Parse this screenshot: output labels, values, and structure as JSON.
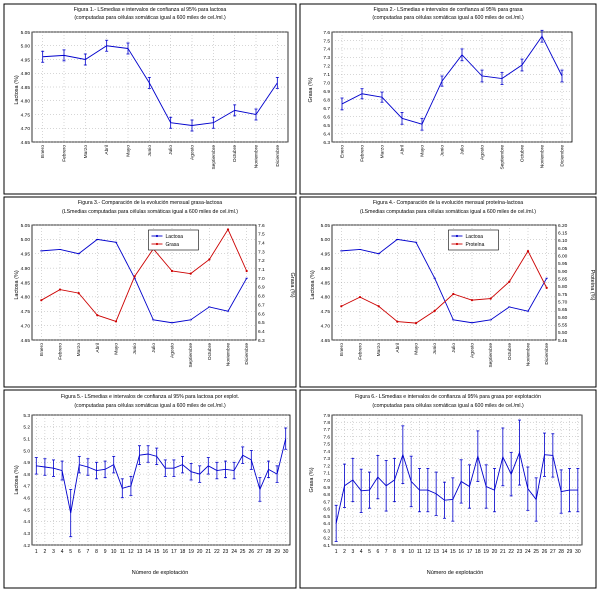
{
  "chart_data": [
    {
      "type": "line",
      "title": "Figura 1.- LSmedias e intervalos de confianza al 95% para lactosa",
      "subtitle": "(computadas para células somáticas igual a 600 miles de cel./ml.)",
      "ylabel": "Lactosa (%)",
      "xlabel": "",
      "ylim": [
        4.65,
        5.05
      ],
      "yticks": [
        "4.65",
        "4.70",
        "4.75",
        "4.80",
        "4.85",
        "4.90",
        "4.95",
        "5.00",
        "5.05"
      ],
      "categories": [
        "Enero",
        "Febrero",
        "Marzo",
        "Abril",
        "Mayo",
        "Junio",
        "Julio",
        "Agosto",
        "Septiembre",
        "Octubre",
        "Noviembre",
        "Diciembre"
      ],
      "series": [
        {
          "name": "",
          "values": [
            4.96,
            4.965,
            4.95,
            5.0,
            4.99,
            4.865,
            4.72,
            4.71,
            4.72,
            4.765,
            4.75,
            4.865
          ],
          "err": [
            0.02,
            0.02,
            0.02,
            0.02,
            0.02,
            0.02,
            0.02,
            0.02,
            0.02,
            0.02,
            0.02,
            0.02
          ],
          "color": "#0000cc"
        }
      ],
      "grid": true
    },
    {
      "type": "line",
      "title": "Figura 2.- LSmedias e intervalos de confianza al 95% para grasa",
      "subtitle": "(computadas para células somáticas igual a 600 miles de cel./ml.)",
      "ylabel": "Grasa (%)",
      "xlabel": "",
      "ylim": [
        6.3,
        7.6
      ],
      "yticks": [
        "6.3",
        "6.4",
        "6.5",
        "6.6",
        "6.7",
        "6.8",
        "6.9",
        "7.0",
        "7.1",
        "7.2",
        "7.3",
        "7.4",
        "7.5",
        "7.6"
      ],
      "categories": [
        "Enero",
        "Febrero",
        "Marzo",
        "Abril",
        "Mayo",
        "Junio",
        "Julio",
        "Agosto",
        "Septiembre",
        "Octubre",
        "Noviembre",
        "Diciembre"
      ],
      "series": [
        {
          "name": "",
          "values": [
            6.75,
            6.87,
            6.83,
            6.58,
            6.51,
            7.02,
            7.33,
            7.08,
            7.05,
            7.21,
            7.55,
            7.08
          ],
          "err": [
            0.07,
            0.06,
            0.06,
            0.07,
            0.07,
            0.06,
            0.07,
            0.07,
            0.07,
            0.07,
            0.07,
            0.07
          ],
          "color": "#0000cc"
        }
      ],
      "grid": true
    },
    {
      "type": "line",
      "title": "Figura 3.- Comparación de la evolución mensual grasa-lactosa",
      "subtitle": "(LSmedias computadas para células somáticas igual a 600 miles de cel./ml.)",
      "ylabel": "Lactosa (%)",
      "ylabel_right": "Grasa (%)",
      "xlabel": "",
      "ylim": [
        4.65,
        5.05
      ],
      "ylim_right": [
        6.3,
        7.6
      ],
      "yticks": [
        "4.65",
        "4.70",
        "4.75",
        "4.80",
        "4.85",
        "4.90",
        "4.95",
        "5.00",
        "5.05"
      ],
      "yticks_right": [
        "6.3",
        "6.4",
        "6.5",
        "6.6",
        "6.7",
        "6.8",
        "6.9",
        "7.0",
        "7.1",
        "7.2",
        "7.3",
        "7.4",
        "7.5",
        "7.6"
      ],
      "categories": [
        "Enero",
        "Febrero",
        "Marzo",
        "Abril",
        "Mayo",
        "Junio",
        "Julio",
        "Agosto",
        "Septiembre",
        "Octubre",
        "Noviembre",
        "Diciembre"
      ],
      "series": [
        {
          "name": "Lactosa",
          "axis": "left",
          "values": [
            4.96,
            4.965,
            4.95,
            5.0,
            4.99,
            4.865,
            4.72,
            4.71,
            4.72,
            4.765,
            4.75,
            4.865
          ],
          "color": "#0000cc"
        },
        {
          "name": "Grasa",
          "axis": "right",
          "values": [
            6.75,
            6.87,
            6.83,
            6.58,
            6.51,
            7.02,
            7.33,
            7.08,
            7.05,
            7.21,
            7.55,
            7.08
          ],
          "color": "#cc0000"
        }
      ],
      "legend": "top-right",
      "grid": true
    },
    {
      "type": "line",
      "title": "Figura 4.- Comparación de la evolución mensual proteína-lactosa",
      "subtitle": "(LSmedias computadas para células somáticas igual a 600 miles de cel./ml.)",
      "ylabel": "Lactosa (%)",
      "ylabel_right": "Proteína (%)",
      "xlabel": "",
      "ylim": [
        4.65,
        5.05
      ],
      "ylim_right": [
        5.45,
        6.2
      ],
      "yticks": [
        "4.65",
        "4.70",
        "4.75",
        "4.80",
        "4.85",
        "4.90",
        "4.95",
        "5.00",
        "5.05"
      ],
      "yticks_right": [
        "5.45",
        "5.50",
        "5.55",
        "5.60",
        "5.65",
        "5.70",
        "5.75",
        "5.80",
        "5.85",
        "5.90",
        "5.95",
        "6.00",
        "6.05",
        "6.10",
        "6.15",
        "6.20"
      ],
      "categories": [
        "Enero",
        "Febrero",
        "Marzo",
        "Abril",
        "Mayo",
        "Junio",
        "Julio",
        "Agosto",
        "Septiembre",
        "Octubre",
        "Noviembre",
        "Diciembre"
      ],
      "series": [
        {
          "name": "Lactosa",
          "axis": "left",
          "values": [
            4.96,
            4.965,
            4.95,
            5.0,
            4.99,
            4.865,
            4.72,
            4.71,
            4.72,
            4.765,
            4.75,
            4.865
          ],
          "color": "#0000cc"
        },
        {
          "name": "Proteína",
          "axis": "right",
          "values": [
            5.67,
            5.73,
            5.67,
            5.57,
            5.56,
            5.64,
            5.75,
            5.71,
            5.72,
            5.83,
            6.03,
            5.79
          ],
          "color": "#cc0000"
        }
      ],
      "legend": "top-right",
      "grid": true
    },
    {
      "type": "line",
      "title": "Figura 5.- LSmedias e intervalos de confianza al 95% para lactosa por explot.",
      "subtitle": "(computadas para células somáticas igual a 600 miles de cel./ml.)",
      "ylabel": "Lactosa (%)",
      "xlabel": "Número de explotación",
      "ylim": [
        4.2,
        5.3
      ],
      "yticks": [
        "4.2",
        "4.3",
        "4.4",
        "4.5",
        "4.6",
        "4.7",
        "4.8",
        "4.9",
        "5.0",
        "5.1",
        "5.2",
        "5.3"
      ],
      "categories": [
        "1",
        "2",
        "3",
        "4",
        "5",
        "6",
        "7",
        "8",
        "9",
        "10",
        "11",
        "12",
        "13",
        "14",
        "15",
        "16",
        "17",
        "18",
        "19",
        "20",
        "21",
        "22",
        "23",
        "24",
        "25",
        "26",
        "27",
        "28",
        "29",
        "30"
      ],
      "series": [
        {
          "name": "",
          "values": [
            4.87,
            4.86,
            4.85,
            4.83,
            4.47,
            4.88,
            4.86,
            4.83,
            4.84,
            4.88,
            4.68,
            4.7,
            4.96,
            4.97,
            4.95,
            4.85,
            4.85,
            4.88,
            4.82,
            4.8,
            4.87,
            4.83,
            4.84,
            4.83,
            4.96,
            4.92,
            4.67,
            4.84,
            4.8,
            5.1
          ],
          "err": [
            0.07,
            0.07,
            0.07,
            0.08,
            0.2,
            0.07,
            0.07,
            0.07,
            0.07,
            0.07,
            0.08,
            0.08,
            0.08,
            0.07,
            0.07,
            0.07,
            0.07,
            0.07,
            0.07,
            0.07,
            0.07,
            0.07,
            0.07,
            0.07,
            0.07,
            0.08,
            0.1,
            0.07,
            0.07,
            0.09
          ],
          "color": "#0000cc"
        }
      ],
      "grid": true
    },
    {
      "type": "line",
      "title": "Figura 6.- LSmedias e intervalos de confianza al 95% para grasa por explotación",
      "subtitle": "(computadas para células somáticas igual a 600 miles de cel./ml.)",
      "ylabel": "Grasa (%)",
      "xlabel": "Número de explotación",
      "ylim": [
        6.1,
        7.9
      ],
      "yticks": [
        "6.1",
        "6.2",
        "6.3",
        "6.4",
        "6.5",
        "6.6",
        "6.7",
        "6.8",
        "6.9",
        "7.0",
        "7.1",
        "7.2",
        "7.3",
        "7.4",
        "7.5",
        "7.6",
        "7.7",
        "7.8",
        "7.9"
      ],
      "categories": [
        "1",
        "2",
        "3",
        "4",
        "5",
        "6",
        "7",
        "8",
        "9",
        "10",
        "11",
        "12",
        "13",
        "14",
        "15",
        "16",
        "17",
        "18",
        "19",
        "20",
        "21",
        "22",
        "23",
        "24",
        "25",
        "26",
        "27",
        "28",
        "29",
        "30"
      ],
      "series": [
        {
          "name": "",
          "values": [
            6.4,
            6.92,
            7.0,
            6.85,
            6.86,
            7.04,
            6.92,
            7.0,
            7.35,
            6.98,
            6.86,
            6.86,
            6.81,
            6.72,
            6.73,
            6.98,
            6.91,
            7.33,
            6.91,
            6.86,
            7.32,
            7.08,
            7.38,
            6.88,
            6.73,
            7.35,
            7.34,
            6.84,
            6.86,
            6.86
          ],
          "err": [
            0.25,
            0.3,
            0.3,
            0.3,
            0.25,
            0.3,
            0.35,
            0.3,
            0.4,
            0.35,
            0.3,
            0.3,
            0.3,
            0.25,
            0.3,
            0.3,
            0.3,
            0.35,
            0.3,
            0.3,
            0.4,
            0.3,
            0.45,
            0.3,
            0.3,
            0.3,
            0.3,
            0.3,
            0.3,
            0.3
          ],
          "color": "#0000cc"
        }
      ],
      "grid": true
    }
  ]
}
